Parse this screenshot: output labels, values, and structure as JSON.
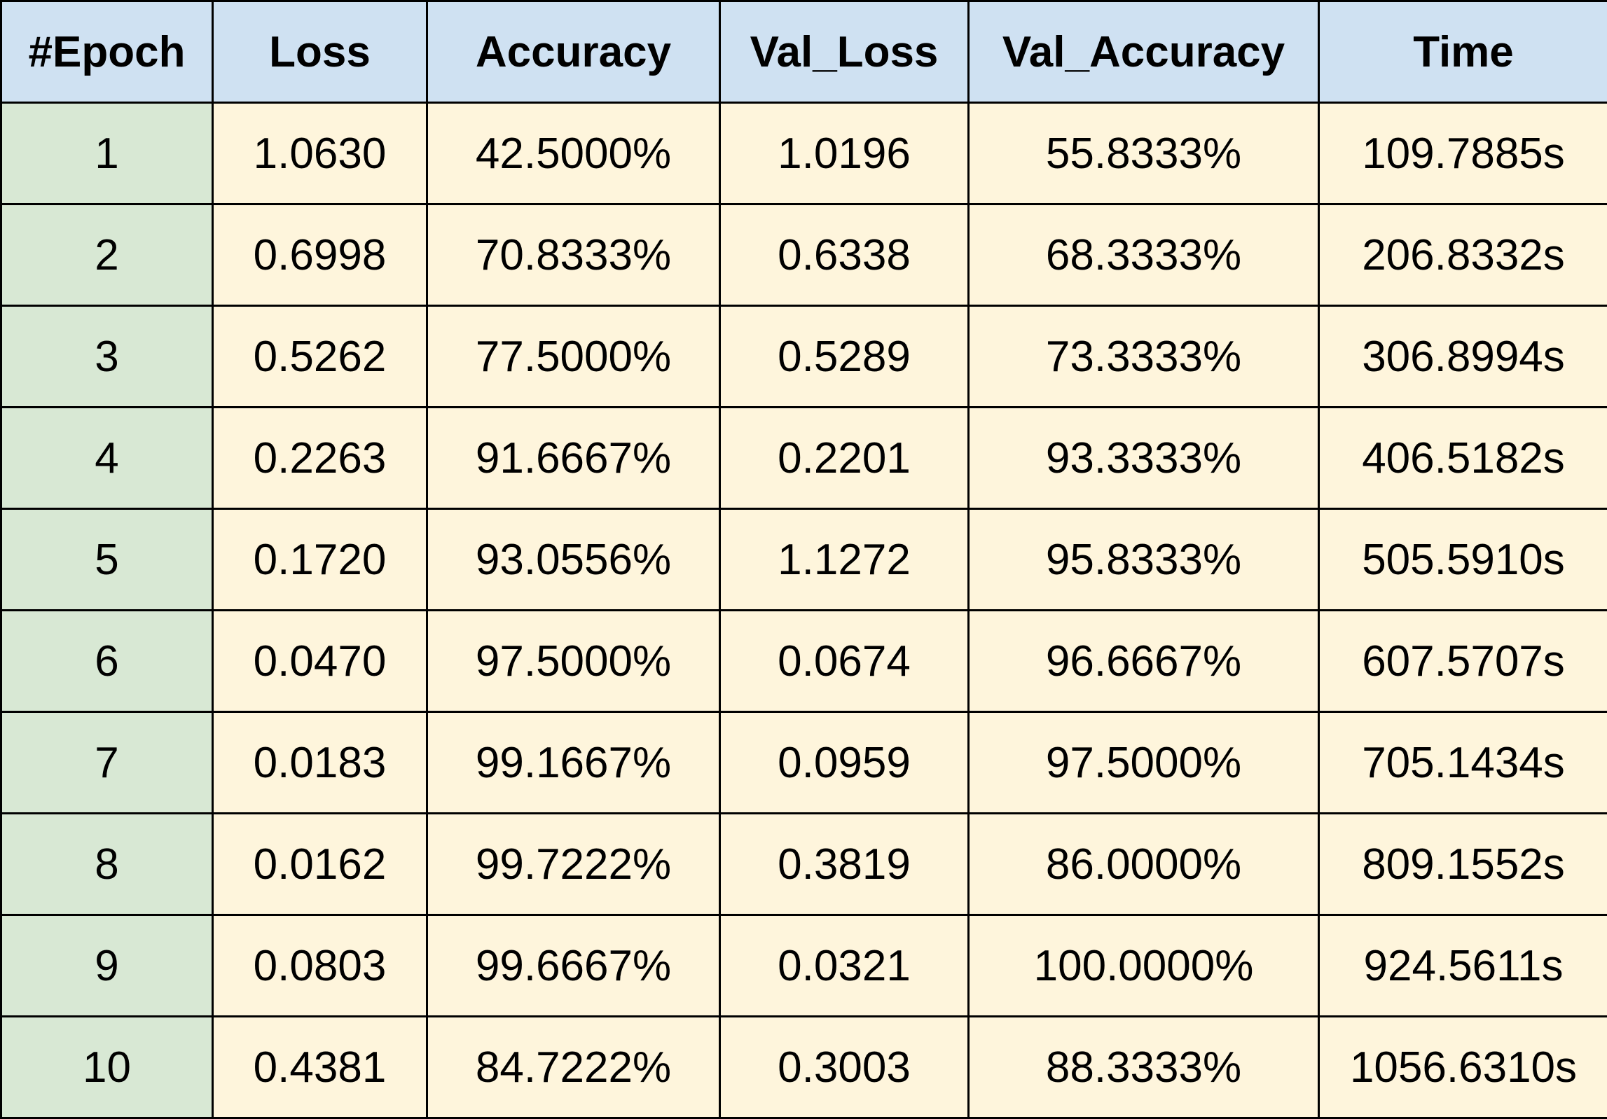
{
  "table": {
    "headers": [
      "#Epoch",
      "Loss",
      "Accuracy",
      "Val_Loss",
      "Val_Accuracy",
      "Time"
    ],
    "rows": [
      [
        "1",
        "1.0630",
        "42.5000%",
        "1.0196",
        "55.8333%",
        "109.7885s"
      ],
      [
        "2",
        "0.6998",
        "70.8333%",
        "0.6338",
        "68.3333%",
        "206.8332s"
      ],
      [
        "3",
        "0.5262",
        "77.5000%",
        "0.5289",
        "73.3333%",
        "306.8994s"
      ],
      [
        "4",
        "0.2263",
        "91.6667%",
        "0.2201",
        "93.3333%",
        "406.5182s"
      ],
      [
        "5",
        "0.1720",
        "93.0556%",
        "1.1272",
        "95.8333%",
        "505.5910s"
      ],
      [
        "6",
        "0.0470",
        "97.5000%",
        "0.0674",
        "96.6667%",
        "607.5707s"
      ],
      [
        "7",
        "0.0183",
        "99.1667%",
        "0.0959",
        "97.5000%",
        "705.1434s"
      ],
      [
        "8",
        "0.0162",
        "99.7222%",
        "0.3819",
        "86.0000%",
        "809.1552s"
      ],
      [
        "9",
        "0.0803",
        "99.6667%",
        "0.0321",
        "100.0000%",
        "924.5611s"
      ],
      [
        "10",
        "0.4381",
        "84.7222%",
        "0.3003",
        "88.3333%",
        "1056.6310s"
      ]
    ]
  },
  "colors": {
    "header_bg": "#cfe1f2",
    "epoch_col_bg": "#d8e8d4",
    "cell_bg": "#fef5dc",
    "border": "#000000"
  }
}
